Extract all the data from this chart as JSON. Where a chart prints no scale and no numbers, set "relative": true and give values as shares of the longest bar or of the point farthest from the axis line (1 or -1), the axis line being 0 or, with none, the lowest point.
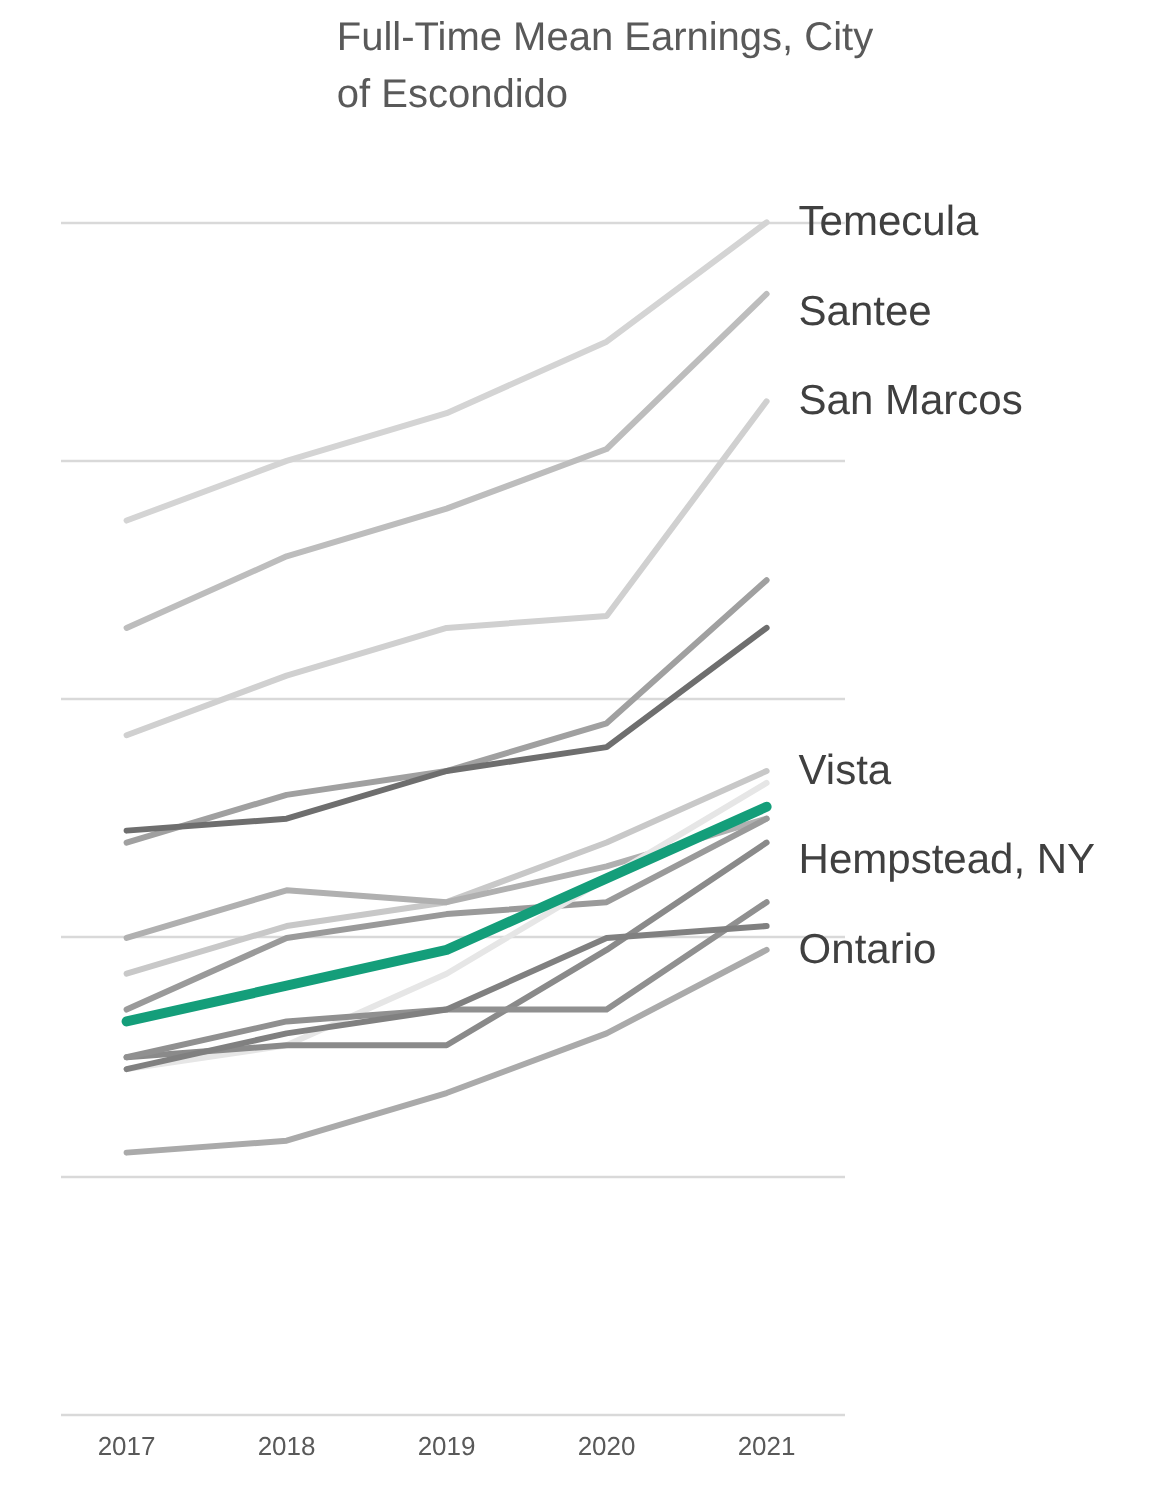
{
  "chart_data": {
    "type": "line",
    "title": "Full-Time Mean Earnings, City of Escondido",
    "relative": true,
    "grid": "y",
    "categories": [
      "2017",
      "2018",
      "2019",
      "2020",
      "2021"
    ],
    "series": [
      {
        "name": "Temecula",
        "color": "#d4d4d4",
        "values": [
          0.75,
          0.8,
          0.84,
          0.9,
          1.0
        ]
      },
      {
        "name": "Santee",
        "color": "#bdbdbd",
        "values": [
          0.66,
          0.72,
          0.76,
          0.81,
          0.94
        ]
      },
      {
        "name": "San Marcos",
        "color": "#d0d0d0",
        "values": [
          0.57,
          0.62,
          0.66,
          0.67,
          0.85
        ]
      },
      {
        "color": "#a0a0a0",
        "values": [
          0.48,
          0.52,
          0.54,
          0.58,
          0.7
        ]
      },
      {
        "color": "#6e6e6e",
        "values": [
          0.49,
          0.5,
          0.54,
          0.56,
          0.66
        ]
      },
      {
        "name": "Vista",
        "color": "#c8c8c8",
        "values": [
          0.37,
          0.41,
          0.43,
          0.48,
          0.54
        ]
      },
      {
        "name": "Hempstead, NY",
        "color": "#b0b0b0",
        "values": [
          0.4,
          0.44,
          0.43,
          0.46,
          0.5
        ]
      },
      {
        "color": "#9a9a9a",
        "values": [
          0.34,
          0.4,
          0.42,
          0.43,
          0.5
        ]
      },
      {
        "color": "#e6e6e6",
        "values": [
          0.29,
          0.31,
          0.37,
          0.45,
          0.53
        ]
      },
      {
        "color": "#8a8a8a",
        "values": [
          0.3,
          0.31,
          0.31,
          0.39,
          0.48
        ]
      },
      {
        "color": "#909090",
        "values": [
          0.3,
          0.33,
          0.34,
          0.34,
          0.43
        ]
      },
      {
        "name": "Ontario",
        "color": "#808080",
        "values": [
          0.29,
          0.32,
          0.34,
          0.4,
          0.41
        ]
      },
      {
        "color": "#aaaaaa",
        "values": [
          0.22,
          0.23,
          0.27,
          0.32,
          0.39
        ]
      },
      {
        "color": "#149e7a",
        "values": [
          0.33,
          0.36,
          0.39,
          0.45,
          0.51
        ]
      }
    ]
  }
}
